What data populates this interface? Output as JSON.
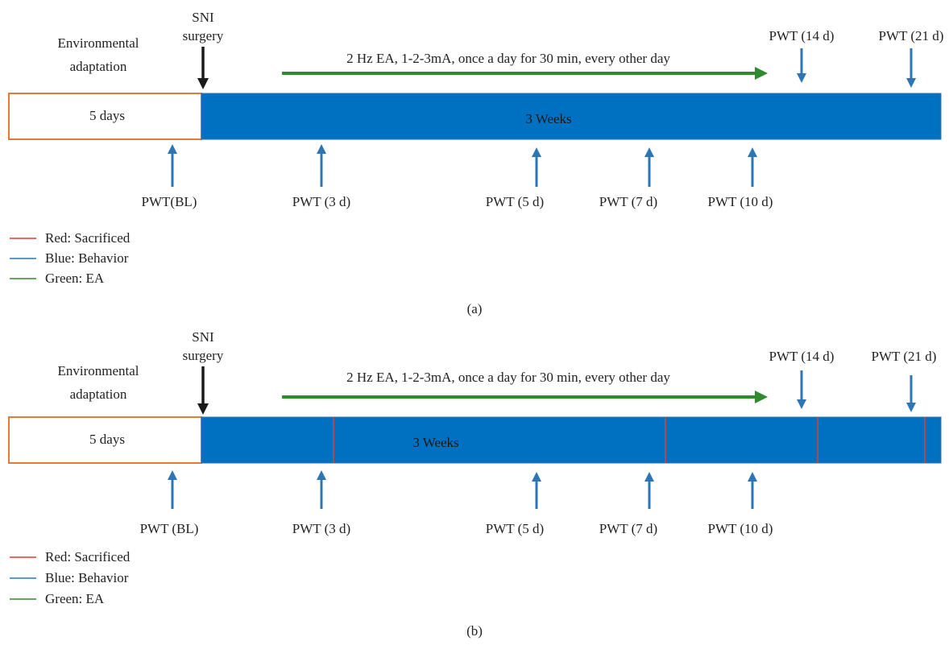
{
  "colors": {
    "adaptation_border": "#E07B39",
    "timeline_bar": "#0070C0",
    "timeline_edge": "#2E75B6",
    "blue_arrow": "#2E75B6",
    "green_arrow": "#2E8B2E",
    "black_arrow": "#1a1a1a",
    "red_line": "#E03C31"
  },
  "panels": [
    {
      "label": "(a)",
      "env_label_1": "Environmental",
      "env_label_2": "adaptation",
      "sni_label_1": "SNI",
      "sni_label_2": "surgery",
      "ea_text": "2 Hz EA, 1-2-3mA, once a day for 30 min, every other day",
      "adaptation_text": "5 days",
      "weeks_text": "3 Weeks",
      "top_arrows": [
        "PWT (14 d)",
        "PWT (21 d)"
      ],
      "bottom_arrows": [
        "PWT(BL)",
        "PWT (3 d)",
        "PWT (5 d)",
        "PWT (7 d)",
        "PWT (10 d)"
      ],
      "legend": [
        "Red: Sacrificed",
        "Blue: Behavior",
        "Green: EA"
      ],
      "sacrifice_lines": 0
    },
    {
      "label": "(b)",
      "env_label_1": "Environmental",
      "env_label_2": "adaptation",
      "sni_label_1": "SNI",
      "sni_label_2": "surgery",
      "ea_text": "2 Hz EA, 1-2-3mA, once a day for 30 min, every other day",
      "adaptation_text": "5 days",
      "weeks_text": "3 Weeks",
      "top_arrows": [
        "PWT (14 d)",
        "PWT (21 d)"
      ],
      "bottom_arrows": [
        "PWT (BL)",
        "PWT (3 d)",
        "PWT (5 d)",
        "PWT (7 d)",
        "PWT (10 d)"
      ],
      "legend": [
        "Red: Sacrificed",
        "Blue: Behavior",
        "Green: EA"
      ],
      "sacrifice_lines": 4
    }
  ]
}
